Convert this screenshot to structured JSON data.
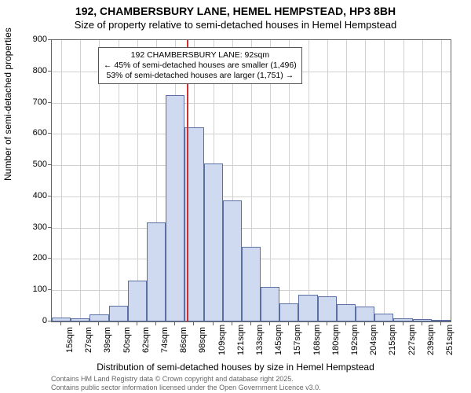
{
  "title_line1": "192, CHAMBERSBURY LANE, HEMEL HEMPSTEAD, HP3 8BH",
  "title_line2": "Size of property relative to semi-detached houses in Hemel Hempstead",
  "y_axis_label": "Number of semi-detached properties",
  "x_axis_label": "Distribution of semi-detached houses by size in Hemel Hempstead",
  "callout": {
    "line1": "192 CHAMBERSBURY LANE: 92sqm",
    "line2": "← 45% of semi-detached houses are smaller (1,496)",
    "line3": "53% of semi-detached houses are larger (1,751) →"
  },
  "footer_line1": "Contains HM Land Registry data © Crown copyright and database right 2025.",
  "footer_line2": "Contains public sector information licensed under the Open Government Licence v3.0.",
  "chart": {
    "type": "histogram",
    "ylim": [
      0,
      900
    ],
    "y_ticks": [
      0,
      100,
      200,
      300,
      400,
      500,
      600,
      700,
      800,
      900
    ],
    "x_categories": [
      "15sqm",
      "27sqm",
      "39sqm",
      "50sqm",
      "62sqm",
      "74sqm",
      "86sqm",
      "98sqm",
      "109sqm",
      "121sqm",
      "133sqm",
      "145sqm",
      "157sqm",
      "168sqm",
      "180sqm",
      "192sqm",
      "204sqm",
      "215sqm",
      "227sqm",
      "239sqm",
      "251sqm"
    ],
    "values": [
      12,
      10,
      22,
      50,
      132,
      318,
      725,
      620,
      505,
      388,
      240,
      110,
      58,
      85,
      80,
      55,
      48,
      25,
      10,
      8,
      5
    ],
    "bar_fill": "#cfd9ef",
    "bar_border": "#5b6fa0",
    "background_color": "#ffffff",
    "grid_color": "#d0d0d0",
    "axis_color": "#666666",
    "ref_line_color": "#d03030",
    "ref_line_index": 6.6,
    "title_fontsize": 14,
    "label_fontsize": 12,
    "tick_fontsize": 11,
    "callout_fontsize": 10.5,
    "footer_fontsize": 9,
    "bar_width_ratio": 1.0
  }
}
